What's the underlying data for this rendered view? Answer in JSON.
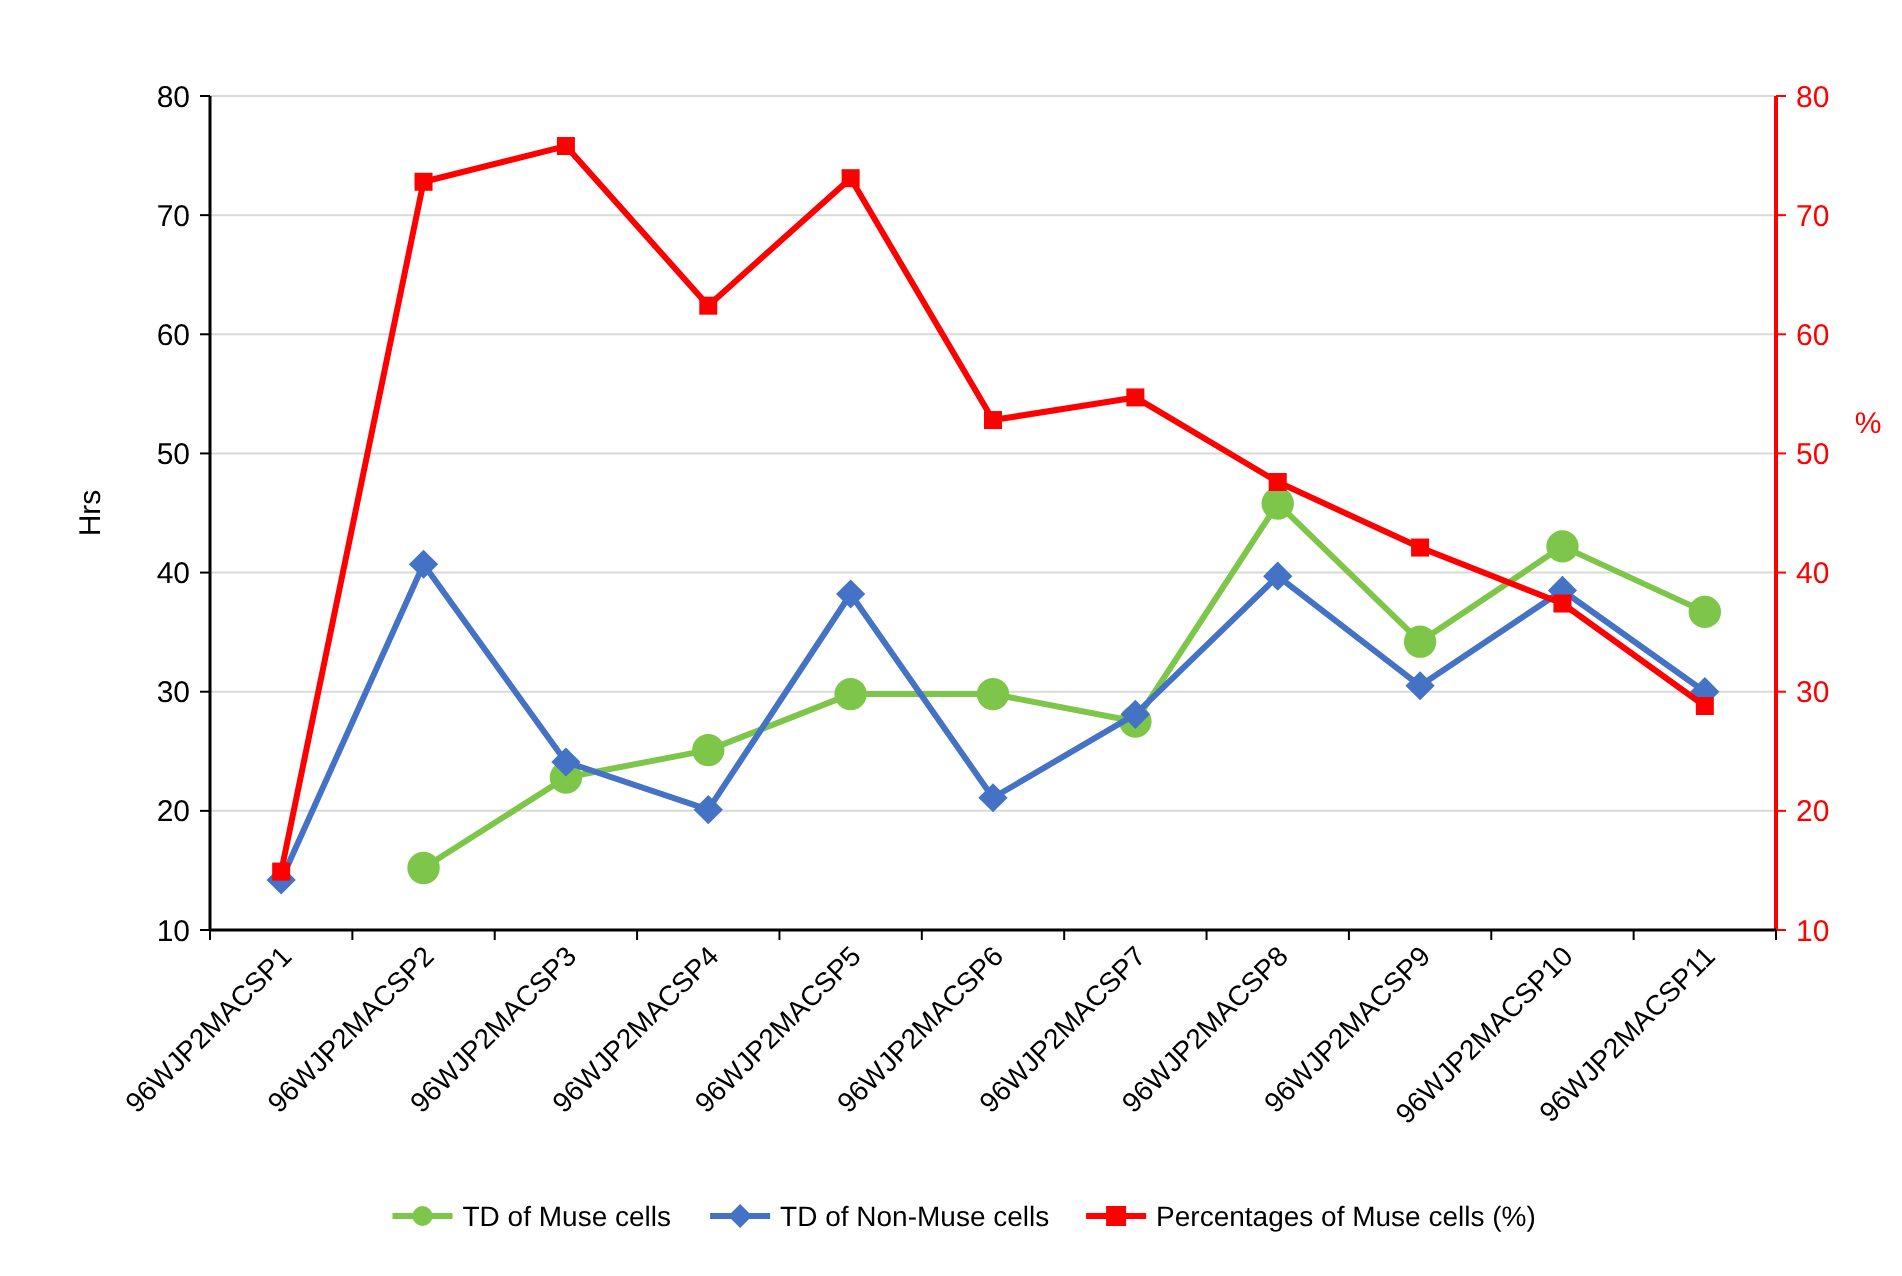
{
  "chart_data": {
    "type": "line",
    "categories": [
      "96WJP2MACSP1",
      "96WJP2MACSP2",
      "96WJP2MACSP3",
      "96WJP2MACSP4",
      "96WJP2MACSP5",
      "96WJP2MACSP6",
      "96WJP2MACSP7",
      "96WJP2MACSP8",
      "96WJP2MACSP9",
      "96WJP2MACSP10",
      "96WJP2MACSP11"
    ],
    "series": [
      {
        "name": "TD of Muse cells",
        "color": "#7ec64a",
        "marker": "circle",
        "values": [
          null,
          15.2,
          22.8,
          25.1,
          29.8,
          29.8,
          27.5,
          45.8,
          34.2,
          42.2,
          36.7
        ]
      },
      {
        "name": "TD of Non-Muse cells",
        "color": "#4472c4",
        "marker": "diamond",
        "values": [
          14.2,
          40.7,
          24.1,
          20.1,
          38.2,
          21.1,
          28.1,
          39.7,
          30.5,
          38.5,
          30.0
        ]
      },
      {
        "name": "Percentages of Muse cells (%)",
        "color": "#ff0000",
        "marker": "square",
        "axis": "y2",
        "values": [
          14.9,
          72.8,
          75.8,
          62.4,
          73.1,
          52.8,
          54.7,
          47.6,
          42.1,
          37.4,
          28.8
        ]
      }
    ],
    "ylabel": "Hrs",
    "y2label": "%",
    "ylim": [
      10,
      80
    ],
    "yticks": [
      10,
      20,
      30,
      40,
      50,
      60,
      70,
      80
    ],
    "y2lim": [
      10,
      80
    ],
    "y2ticks": [
      10,
      20,
      30,
      40,
      50,
      60,
      70,
      80
    ],
    "grid": "y",
    "legend": "bottom",
    "line_style": "solid"
  }
}
